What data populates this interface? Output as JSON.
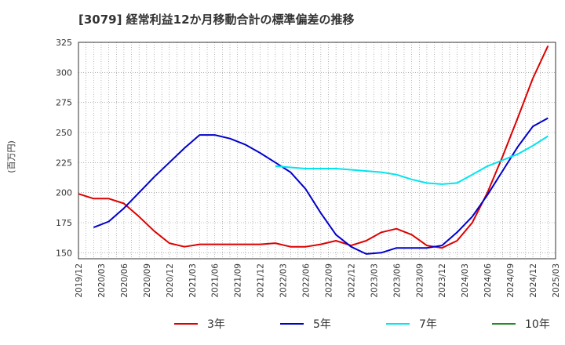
{
  "chart_data": {
    "type": "line",
    "title": "[3079]  経常利益12か月移動合計の標準偏差の推移",
    "ylabel": "(百万円)",
    "xlabel": "",
    "ylim": [
      145,
      325
    ],
    "yticks": [
      150,
      175,
      200,
      225,
      250,
      275,
      300,
      325
    ],
    "xticks": [
      "2019/12",
      "2020/03",
      "2020/06",
      "2020/09",
      "2020/12",
      "2021/03",
      "2021/06",
      "2021/09",
      "2021/12",
      "2022/03",
      "2022/06",
      "2022/09",
      "2022/12",
      "2023/03",
      "2023/06",
      "2023/09",
      "2023/12",
      "2024/03",
      "2024/06",
      "2024/09",
      "2024/12",
      "2025/03"
    ],
    "grid": true,
    "legend_position": "bottom",
    "series": [
      {
        "name": "3年",
        "color": "#dd0000",
        "points": [
          [
            "2019/12",
            199
          ],
          [
            "2020/02",
            195
          ],
          [
            "2020/04",
            195
          ],
          [
            "2020/06",
            191
          ],
          [
            "2020/08",
            180
          ],
          [
            "2020/10",
            168
          ],
          [
            "2020/12",
            158
          ],
          [
            "2021/02",
            155
          ],
          [
            "2021/04",
            157
          ],
          [
            "2021/06",
            157
          ],
          [
            "2021/08",
            157
          ],
          [
            "2021/10",
            157
          ],
          [
            "2021/12",
            157
          ],
          [
            "2022/02",
            158
          ],
          [
            "2022/04",
            155
          ],
          [
            "2022/06",
            155
          ],
          [
            "2022/08",
            157
          ],
          [
            "2022/10",
            160
          ],
          [
            "2022/12",
            156
          ],
          [
            "2023/02",
            160
          ],
          [
            "2023/04",
            167
          ],
          [
            "2023/06",
            170
          ],
          [
            "2023/08",
            165
          ],
          [
            "2023/10",
            156
          ],
          [
            "2023/12",
            154
          ],
          [
            "2024/02",
            160
          ],
          [
            "2024/04",
            175
          ],
          [
            "2024/06",
            200
          ],
          [
            "2024/08",
            230
          ],
          [
            "2024/10",
            262
          ],
          [
            "2024/12",
            295
          ],
          [
            "2025/02",
            322
          ]
        ]
      },
      {
        "name": "5年",
        "color": "#0000cc",
        "points": [
          [
            "2020/02",
            171
          ],
          [
            "2020/04",
            176
          ],
          [
            "2020/06",
            187
          ],
          [
            "2020/08",
            200
          ],
          [
            "2020/10",
            213
          ],
          [
            "2020/12",
            225
          ],
          [
            "2021/02",
            237
          ],
          [
            "2021/04",
            248
          ],
          [
            "2021/06",
            248
          ],
          [
            "2021/08",
            245
          ],
          [
            "2021/10",
            240
          ],
          [
            "2021/12",
            233
          ],
          [
            "2022/02",
            225
          ],
          [
            "2022/04",
            217
          ],
          [
            "2022/06",
            203
          ],
          [
            "2022/08",
            183
          ],
          [
            "2022/10",
            165
          ],
          [
            "2022/12",
            155
          ],
          [
            "2023/02",
            149
          ],
          [
            "2023/04",
            150
          ],
          [
            "2023/06",
            154
          ],
          [
            "2023/08",
            154
          ],
          [
            "2023/10",
            154
          ],
          [
            "2023/12",
            156
          ],
          [
            "2024/02",
            167
          ],
          [
            "2024/04",
            180
          ],
          [
            "2024/06",
            198
          ],
          [
            "2024/08",
            218
          ],
          [
            "2024/10",
            238
          ],
          [
            "2024/12",
            255
          ],
          [
            "2025/02",
            262
          ]
        ]
      },
      {
        "name": "7年",
        "color": "#00e5ee",
        "points": [
          [
            "2022/02",
            222
          ],
          [
            "2022/04",
            221
          ],
          [
            "2022/06",
            220
          ],
          [
            "2022/08",
            220
          ],
          [
            "2022/10",
            220
          ],
          [
            "2022/12",
            219
          ],
          [
            "2023/02",
            218
          ],
          [
            "2023/04",
            217
          ],
          [
            "2023/06",
            215
          ],
          [
            "2023/08",
            211
          ],
          [
            "2023/10",
            208
          ],
          [
            "2023/12",
            207
          ],
          [
            "2024/02",
            208
          ],
          [
            "2024/04",
            215
          ],
          [
            "2024/06",
            222
          ],
          [
            "2024/08",
            227
          ],
          [
            "2024/10",
            232
          ],
          [
            "2024/12",
            239
          ],
          [
            "2025/02",
            247
          ]
        ]
      },
      {
        "name": "10年",
        "color": "#228b22",
        "points": []
      }
    ]
  }
}
